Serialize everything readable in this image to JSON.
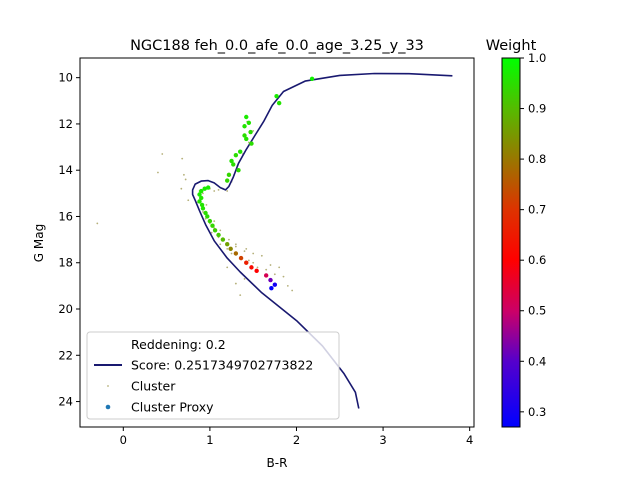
{
  "chart_data": {
    "type": "scatter",
    "title": "NGC188 feh_0.0_afe_0.0_age_3.25_y_33",
    "xlabel": "B-R",
    "ylabel": "G Mag",
    "xlim": [
      -0.5,
      4.05
    ],
    "ylim": [
      25.1,
      9.15
    ],
    "y_inverted": true,
    "grid": false,
    "x_ticks": [
      0,
      1,
      2,
      3,
      4
    ],
    "y_ticks": [
      10,
      12,
      14,
      16,
      18,
      20,
      22,
      24
    ],
    "legend": {
      "placement": "lower-left",
      "entries": [
        {
          "label": "Reddening: 0.2",
          "marker": "none"
        },
        {
          "label": "Score: 0.2517349702773822",
          "marker": "line",
          "color": "#191970"
        },
        {
          "label": "Cluster",
          "marker": "small-dot",
          "color": "#b5b07a"
        },
        {
          "label": "Cluster Proxy",
          "marker": "dot",
          "color": "#1f77b4"
        }
      ]
    },
    "colorbar": {
      "label": "Weight",
      "range": [
        0.27,
        1.0
      ],
      "ticks": [
        "0.3",
        "0.4",
        "0.5",
        "0.6",
        "0.7",
        "0.8",
        "0.9",
        "1.0"
      ],
      "tick_values": [
        0.3,
        0.4,
        0.5,
        0.6,
        0.7,
        0.8,
        0.9,
        1.0
      ],
      "stops": [
        {
          "v": 0.27,
          "color": "#0000ff"
        },
        {
          "v": 0.4,
          "color": "#5500cc"
        },
        {
          "v": 0.5,
          "color": "#cc0066"
        },
        {
          "v": 0.6,
          "color": "#ff0000"
        },
        {
          "v": 0.7,
          "color": "#dd3300"
        },
        {
          "v": 0.8,
          "color": "#997700"
        },
        {
          "v": 0.9,
          "color": "#55bb00"
        },
        {
          "v": 1.0,
          "color": "#00ff00"
        }
      ]
    },
    "series": [
      {
        "name": "Score: 0.2517349702773822",
        "kind": "line",
        "color": "#191970",
        "points": [
          [
            2.72,
            24.3
          ],
          [
            2.68,
            23.6
          ],
          [
            2.55,
            22.8
          ],
          [
            2.3,
            21.6
          ],
          [
            2.0,
            20.5
          ],
          [
            1.6,
            19.3
          ],
          [
            1.35,
            18.4
          ],
          [
            1.2,
            17.8
          ],
          [
            1.05,
            17.05
          ],
          [
            0.95,
            16.35
          ],
          [
            0.88,
            15.75
          ],
          [
            0.83,
            15.3
          ],
          [
            0.8,
            15.05
          ],
          [
            0.8,
            14.85
          ],
          [
            0.83,
            14.6
          ],
          [
            0.9,
            14.47
          ],
          [
            0.98,
            14.45
          ],
          [
            1.05,
            14.55
          ],
          [
            1.12,
            14.75
          ],
          [
            1.18,
            14.85
          ],
          [
            1.22,
            14.7
          ],
          [
            1.27,
            14.3
          ],
          [
            1.33,
            13.7
          ],
          [
            1.42,
            13.1
          ],
          [
            1.52,
            12.5
          ],
          [
            1.62,
            11.9
          ],
          [
            1.72,
            11.2
          ],
          [
            1.85,
            10.6
          ],
          [
            2.1,
            10.15
          ],
          [
            2.5,
            9.9
          ],
          [
            2.9,
            9.82
          ],
          [
            3.3,
            9.83
          ],
          [
            3.8,
            9.92
          ]
        ]
      },
      {
        "name": "Cluster",
        "kind": "scatter",
        "color": "#b5b07a",
        "points": [
          [
            -0.3,
            16.3
          ],
          [
            0.45,
            13.3
          ],
          [
            0.4,
            14.1
          ],
          [
            0.68,
            13.5
          ],
          [
            0.7,
            14.2
          ],
          [
            0.72,
            14.4
          ],
          [
            0.67,
            14.8
          ],
          [
            0.75,
            15.3
          ],
          [
            0.85,
            15.4
          ],
          [
            0.92,
            15.8
          ],
          [
            0.95,
            16.1
          ],
          [
            0.98,
            16.0
          ],
          [
            1.0,
            16.3
          ],
          [
            1.02,
            16.7
          ],
          [
            1.05,
            16.5
          ],
          [
            1.1,
            16.9
          ],
          [
            1.12,
            17.2
          ],
          [
            1.15,
            17.0
          ],
          [
            1.2,
            17.4
          ],
          [
            1.25,
            17.6
          ],
          [
            1.3,
            17.3
          ],
          [
            1.35,
            17.8
          ],
          [
            1.4,
            17.5
          ],
          [
            1.45,
            17.9
          ],
          [
            1.5,
            18.0
          ],
          [
            1.55,
            18.2
          ],
          [
            1.6,
            17.7
          ],
          [
            1.65,
            18.3
          ],
          [
            1.7,
            18.1
          ],
          [
            1.75,
            18.5
          ],
          [
            1.8,
            18.2
          ],
          [
            1.85,
            18.6
          ],
          [
            1.9,
            19.0
          ],
          [
            1.95,
            19.2
          ],
          [
            1.3,
            18.9
          ],
          [
            1.35,
            19.4
          ],
          [
            1.4,
            18.7
          ],
          [
            1.2,
            18.2
          ],
          [
            1.0,
            14.8
          ],
          [
            1.05,
            14.9
          ],
          [
            1.1,
            14.85
          ],
          [
            1.15,
            14.8
          ],
          [
            1.2,
            14.9
          ],
          [
            1.25,
            14.5
          ],
          [
            1.28,
            14.2
          ],
          [
            1.32,
            13.8
          ],
          [
            1.38,
            13.3
          ],
          [
            1.45,
            12.8
          ],
          [
            1.5,
            12.3
          ],
          [
            1.43,
            11.9
          ],
          [
            0.92,
            15.0
          ],
          [
            0.88,
            14.9
          ],
          [
            0.96,
            15.5
          ],
          [
            1.05,
            16.2
          ],
          [
            1.12,
            16.6
          ],
          [
            1.22,
            17.0
          ],
          [
            1.3,
            17.2
          ],
          [
            1.42,
            17.4
          ],
          [
            1.5,
            17.6
          ]
        ]
      },
      {
        "name": "Cluster Proxy",
        "kind": "scatter",
        "color_by": "weight",
        "points": [
          [
            2.18,
            10.05,
            0.98
          ],
          [
            1.77,
            10.8,
            0.97
          ],
          [
            1.8,
            11.1,
            0.96
          ],
          [
            1.42,
            11.7,
            0.97
          ],
          [
            1.45,
            11.95,
            0.96
          ],
          [
            1.4,
            12.1,
            0.96
          ],
          [
            1.47,
            12.35,
            0.95
          ],
          [
            1.4,
            12.5,
            0.95
          ],
          [
            1.42,
            12.65,
            0.96
          ],
          [
            1.48,
            12.85,
            0.95
          ],
          [
            1.35,
            13.2,
            0.96
          ],
          [
            1.3,
            13.35,
            0.95
          ],
          [
            1.25,
            13.6,
            0.96
          ],
          [
            1.27,
            13.75,
            0.95
          ],
          [
            1.33,
            14.0,
            0.95
          ],
          [
            1.22,
            14.2,
            0.94
          ],
          [
            1.2,
            14.45,
            0.94
          ],
          [
            0.98,
            14.75,
            0.97
          ],
          [
            0.94,
            14.8,
            0.97
          ],
          [
            0.9,
            14.9,
            0.97
          ],
          [
            0.88,
            15.05,
            0.97
          ],
          [
            0.9,
            15.2,
            0.96
          ],
          [
            0.88,
            15.35,
            0.96
          ],
          [
            0.91,
            15.5,
            0.96
          ],
          [
            0.92,
            15.65,
            0.96
          ],
          [
            0.95,
            15.85,
            0.95
          ],
          [
            0.97,
            16.0,
            0.95
          ],
          [
            1.0,
            16.2,
            0.94
          ],
          [
            1.03,
            16.4,
            0.94
          ],
          [
            1.06,
            16.6,
            0.93
          ],
          [
            1.1,
            16.8,
            0.92
          ],
          [
            1.15,
            17.0,
            0.9
          ],
          [
            1.2,
            17.2,
            0.86
          ],
          [
            1.24,
            17.4,
            0.82
          ],
          [
            1.3,
            17.6,
            0.78
          ],
          [
            1.36,
            17.8,
            0.72
          ],
          [
            1.42,
            18.0,
            0.66
          ],
          [
            1.48,
            18.2,
            0.62
          ],
          [
            1.54,
            18.35,
            0.6
          ],
          [
            1.65,
            18.55,
            0.52
          ],
          [
            1.7,
            18.75,
            0.42
          ],
          [
            1.75,
            18.95,
            0.3
          ],
          [
            1.71,
            19.1,
            0.27
          ]
        ]
      }
    ]
  }
}
